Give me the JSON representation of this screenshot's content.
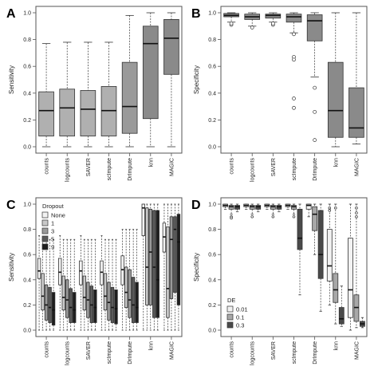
{
  "chart_data": [
    {
      "panel": "A",
      "type": "boxplot",
      "ylabel": "Sensitivity",
      "ylim": [
        0,
        1
      ],
      "yticks": [
        "0.0",
        "0.2",
        "0.4",
        "0.6",
        "0.8",
        "1.0"
      ],
      "categories": [
        "counts",
        "logcounts",
        "SAVER",
        "scImpute",
        "DrImpute",
        "knn",
        "MAGIC"
      ],
      "boxes": [
        {
          "category": "counts",
          "min": 0.0,
          "q1": 0.08,
          "median": 0.27,
          "q3": 0.41,
          "max": 0.77,
          "fill": "#b0b0b0"
        },
        {
          "category": "logcounts",
          "min": 0.0,
          "q1": 0.08,
          "median": 0.29,
          "q3": 0.43,
          "max": 0.78,
          "fill": "#b0b0b0"
        },
        {
          "category": "SAVER",
          "min": 0.0,
          "q1": 0.08,
          "median": 0.28,
          "q3": 0.42,
          "max": 0.78,
          "fill": "#b0b0b0"
        },
        {
          "category": "scImpute",
          "min": 0.0,
          "q1": 0.08,
          "median": 0.27,
          "q3": 0.45,
          "max": 0.78,
          "fill": "#b0b0b0"
        },
        {
          "category": "DrImpute",
          "min": 0.0,
          "q1": 0.1,
          "median": 0.3,
          "q3": 0.63,
          "max": 0.98,
          "fill": "#9a9a9a"
        },
        {
          "category": "knn",
          "min": 0.0,
          "q1": 0.21,
          "median": 0.77,
          "q3": 0.9,
          "max": 1.0,
          "fill": "#8a8a8a"
        },
        {
          "category": "MAGIC",
          "min": 0.0,
          "q1": 0.54,
          "median": 0.81,
          "q3": 0.95,
          "max": 1.0,
          "fill": "#8a8a8a"
        }
      ]
    },
    {
      "panel": "B",
      "type": "boxplot",
      "ylabel": "Specificity",
      "ylim": [
        0,
        1
      ],
      "yticks": [
        "0.0",
        "0.2",
        "0.4",
        "0.6",
        "0.8",
        "1.0"
      ],
      "categories": [
        "counts",
        "logcounts",
        "SAVER",
        "scImpute",
        "DrImpute",
        "knn",
        "MAGIC"
      ],
      "boxes": [
        {
          "category": "counts",
          "min": 0.93,
          "q1": 0.97,
          "median": 0.98,
          "q3": 0.995,
          "max": 1.0,
          "fill": "#8a8a8a",
          "outliers": [
            0.91,
            0.92
          ]
        },
        {
          "category": "logcounts",
          "min": 0.9,
          "q1": 0.95,
          "median": 0.97,
          "q3": 0.99,
          "max": 1.0,
          "fill": "#8a8a8a",
          "outliers": [
            0.89
          ]
        },
        {
          "category": "SAVER",
          "min": 0.93,
          "q1": 0.96,
          "median": 0.98,
          "q3": 0.99,
          "max": 1.0,
          "fill": "#8a8a8a",
          "outliers": [
            0.91,
            0.92
          ]
        },
        {
          "category": "scImpute",
          "min": 0.85,
          "q1": 0.93,
          "median": 0.97,
          "q3": 0.99,
          "max": 1.0,
          "fill": "#8a8a8a",
          "outliers": [
            0.84,
            0.67,
            0.65,
            0.36,
            0.29
          ]
        },
        {
          "category": "DrImpute",
          "min": 0.52,
          "q1": 0.79,
          "median": 0.94,
          "q3": 0.985,
          "max": 1.0,
          "fill": "#8a8a8a",
          "outliers": [
            0.44,
            0.26,
            0.05
          ]
        },
        {
          "category": "knn",
          "min": 0.0,
          "q1": 0.07,
          "median": 0.27,
          "q3": 0.63,
          "max": 1.0,
          "fill": "#8a8a8a"
        },
        {
          "category": "MAGIC",
          "min": 0.02,
          "q1": 0.07,
          "median": 0.14,
          "q3": 0.44,
          "max": 1.0,
          "fill": "#8a8a8a"
        }
      ]
    },
    {
      "panel": "C",
      "type": "boxplot",
      "ylabel": "Sensitivity",
      "ylim": [
        0,
        1
      ],
      "yticks": [
        "0.0",
        "0.2",
        "0.4",
        "0.6",
        "0.8",
        "1.0"
      ],
      "categories": [
        "counts",
        "logcounts",
        "SAVER",
        "scImpute",
        "DrImpute",
        "knn",
        "MAGIC"
      ],
      "legend": {
        "title": "Dropout",
        "entries": [
          {
            "label": "None",
            "color": "#f2f2f2"
          },
          {
            "label": "1",
            "color": "#c8c8c8"
          },
          {
            "label": "3",
            "color": "#9a9a9a"
          },
          {
            "label": "5",
            "color": "#5a5a5a"
          },
          {
            "label": "9",
            "color": "#1e1e1e"
          }
        ]
      },
      "series": [
        {
          "name": "None",
          "boxes": [
            {
              "category": "counts",
              "min": 0.0,
              "q1": 0.41,
              "median": 0.47,
              "q3": 0.57,
              "max": 0.75
            },
            {
              "category": "logcounts",
              "min": 0.0,
              "q1": 0.36,
              "median": 0.46,
              "q3": 0.57,
              "max": 0.75
            },
            {
              "category": "SAVER",
              "min": 0.0,
              "q1": 0.36,
              "median": 0.47,
              "q3": 0.55,
              "max": 0.75
            },
            {
              "category": "scImpute",
              "min": 0.0,
              "q1": 0.36,
              "median": 0.46,
              "q3": 0.55,
              "max": 0.75
            },
            {
              "category": "DrImpute",
              "min": 0.0,
              "q1": 0.36,
              "median": 0.48,
              "q3": 0.59,
              "max": 0.8
            },
            {
              "category": "knn",
              "min": 0.0,
              "q1": 0.75,
              "median": 0.97,
              "q3": 1.0,
              "max": 1.0
            },
            {
              "category": "MAGIC",
              "min": 0.0,
              "q1": 0.62,
              "median": 0.74,
              "q3": 0.85,
              "max": 1.0
            }
          ]
        },
        {
          "name": "1",
          "boxes": [
            {
              "category": "counts",
              "min": 0.0,
              "q1": 0.16,
              "median": 0.27,
              "q3": 0.45,
              "max": 0.72
            },
            {
              "category": "logcounts",
              "min": 0.0,
              "q1": 0.16,
              "median": 0.26,
              "q3": 0.43,
              "max": 0.72
            },
            {
              "category": "SAVER",
              "min": 0.0,
              "q1": 0.16,
              "median": 0.26,
              "q3": 0.43,
              "max": 0.72
            },
            {
              "category": "scImpute",
              "min": 0.0,
              "q1": 0.16,
              "median": 0.27,
              "q3": 0.45,
              "max": 0.72
            },
            {
              "category": "DrImpute",
              "min": 0.0,
              "q1": 0.18,
              "median": 0.3,
              "q3": 0.5,
              "max": 0.8
            },
            {
              "category": "knn",
              "min": 0.0,
              "q1": 0.2,
              "median": 0.5,
              "q3": 0.97,
              "max": 1.0
            },
            {
              "category": "MAGIC",
              "min": 0.0,
              "q1": 0.1,
              "median": 0.33,
              "q3": 0.82,
              "max": 1.0
            }
          ]
        },
        {
          "name": "3",
          "boxes": [
            {
              "category": "counts",
              "min": 0.0,
              "q1": 0.08,
              "median": 0.2,
              "q3": 0.36,
              "max": 0.72
            },
            {
              "category": "logcounts",
              "min": 0.0,
              "q1": 0.1,
              "median": 0.24,
              "q3": 0.4,
              "max": 0.72
            },
            {
              "category": "SAVER",
              "min": 0.0,
              "q1": 0.1,
              "median": 0.24,
              "q3": 0.38,
              "max": 0.72
            },
            {
              "category": "scImpute",
              "min": 0.0,
              "q1": 0.08,
              "median": 0.22,
              "q3": 0.38,
              "max": 0.72
            },
            {
              "category": "DrImpute",
              "min": 0.0,
              "q1": 0.1,
              "median": 0.24,
              "q3": 0.48,
              "max": 0.8
            },
            {
              "category": "knn",
              "min": 0.0,
              "q1": 0.2,
              "median": 0.62,
              "q3": 0.96,
              "max": 1.0
            },
            {
              "category": "MAGIC",
              "min": 0.0,
              "q1": 0.25,
              "median": 0.72,
              "q3": 0.9,
              "max": 1.0
            }
          ]
        },
        {
          "name": "5",
          "boxes": [
            {
              "category": "counts",
              "min": 0.0,
              "q1": 0.06,
              "median": 0.18,
              "q3": 0.34,
              "max": 0.72
            },
            {
              "category": "logcounts",
              "min": 0.0,
              "q1": 0.06,
              "median": 0.18,
              "q3": 0.33,
              "max": 0.72
            },
            {
              "category": "SAVER",
              "min": 0.0,
              "q1": 0.06,
              "median": 0.2,
              "q3": 0.35,
              "max": 0.72
            },
            {
              "category": "scImpute",
              "min": 0.0,
              "q1": 0.06,
              "median": 0.18,
              "q3": 0.34,
              "max": 0.72
            },
            {
              "category": "DrImpute",
              "min": 0.0,
              "q1": 0.06,
              "median": 0.2,
              "q3": 0.42,
              "max": 0.8
            },
            {
              "category": "knn",
              "min": 0.0,
              "q1": 0.1,
              "median": 0.5,
              "q3": 0.95,
              "max": 1.0
            },
            {
              "category": "MAGIC",
              "min": 0.0,
              "q1": 0.3,
              "median": 0.8,
              "q3": 0.9,
              "max": 1.0
            }
          ]
        },
        {
          "name": "9",
          "boxes": [
            {
              "category": "counts",
              "min": 0.0,
              "q1": 0.04,
              "median": 0.16,
              "q3": 0.3,
              "max": 0.72
            },
            {
              "category": "logcounts",
              "min": 0.0,
              "q1": 0.06,
              "median": 0.16,
              "q3": 0.3,
              "max": 0.72
            },
            {
              "category": "SAVER",
              "min": 0.0,
              "q1": 0.06,
              "median": 0.18,
              "q3": 0.32,
              "max": 0.72
            },
            {
              "category": "scImpute",
              "min": 0.0,
              "q1": 0.05,
              "median": 0.17,
              "q3": 0.32,
              "max": 0.72
            },
            {
              "category": "DrImpute",
              "min": 0.0,
              "q1": 0.06,
              "median": 0.18,
              "q3": 0.38,
              "max": 0.8
            },
            {
              "category": "knn",
              "min": 0.0,
              "q1": 0.1,
              "median": 0.4,
              "q3": 0.95,
              "max": 1.0
            },
            {
              "category": "MAGIC",
              "min": 0.0,
              "q1": 0.2,
              "median": 0.7,
              "q3": 0.92,
              "max": 1.0
            }
          ]
        }
      ]
    },
    {
      "panel": "D",
      "type": "boxplot",
      "ylabel": "Specificity",
      "ylim": [
        0,
        1
      ],
      "yticks": [
        "0.0",
        "0.2",
        "0.4",
        "0.6",
        "0.8",
        "1.0"
      ],
      "categories": [
        "counts",
        "logcounts",
        "SAVER",
        "scImpute",
        "DrImpute",
        "knn",
        "MAGIC"
      ],
      "legend": {
        "title": "DE",
        "entries": [
          {
            "label": "0.01",
            "color": "#f2f2f2"
          },
          {
            "label": "0.1",
            "color": "#a8a8a8"
          },
          {
            "label": "0.3",
            "color": "#4a4a4a"
          }
        ]
      },
      "series": [
        {
          "name": "0.01",
          "boxes": [
            {
              "category": "counts",
              "min": 0.96,
              "q1": 0.98,
              "median": 0.99,
              "q3": 1.0,
              "max": 1.0
            },
            {
              "category": "logcounts",
              "min": 0.96,
              "q1": 0.98,
              "median": 0.99,
              "q3": 1.0,
              "max": 1.0
            },
            {
              "category": "SAVER",
              "min": 0.96,
              "q1": 0.98,
              "median": 0.99,
              "q3": 1.0,
              "max": 1.0
            },
            {
              "category": "scImpute",
              "min": 0.96,
              "q1": 0.98,
              "median": 0.99,
              "q3": 1.0,
              "max": 1.0
            },
            {
              "category": "DrImpute",
              "min": 0.9,
              "q1": 0.96,
              "median": 0.99,
              "q3": 1.0,
              "max": 1.0
            },
            {
              "category": "knn",
              "min": 0.2,
              "q1": 0.39,
              "median": 0.51,
              "q3": 0.8,
              "max": 1.0,
              "outliers": [
                0.97,
                0.95
              ]
            },
            {
              "category": "MAGIC",
              "min": 0.0,
              "q1": 0.1,
              "median": 0.32,
              "q3": 0.73,
              "max": 1.0
            }
          ]
        },
        {
          "name": "0.1",
          "boxes": [
            {
              "category": "counts",
              "min": 0.92,
              "q1": 0.96,
              "median": 0.98,
              "q3": 0.99,
              "max": 1.0,
              "outliers": [
                0.9,
                0.89
              ]
            },
            {
              "category": "logcounts",
              "min": 0.92,
              "q1": 0.96,
              "median": 0.98,
              "q3": 0.99,
              "max": 1.0,
              "outliers": [
                0.9
              ]
            },
            {
              "category": "SAVER",
              "min": 0.92,
              "q1": 0.96,
              "median": 0.98,
              "q3": 0.99,
              "max": 1.0,
              "outliers": [
                0.9
              ]
            },
            {
              "category": "scImpute",
              "min": 0.92,
              "q1": 0.96,
              "median": 0.98,
              "q3": 0.99,
              "max": 1.0,
              "outliers": [
                0.9
              ]
            },
            {
              "category": "DrImpute",
              "min": 0.6,
              "q1": 0.79,
              "median": 0.92,
              "q3": 0.98,
              "max": 1.0
            },
            {
              "category": "knn",
              "min": 0.05,
              "q1": 0.22,
              "median": 0.32,
              "q3": 0.45,
              "max": 1.0,
              "outliers": [
                0.97
              ]
            },
            {
              "category": "MAGIC",
              "min": 0.02,
              "q1": 0.07,
              "median": 0.18,
              "q3": 0.28,
              "max": 1.0,
              "outliers": [
                0.97,
                0.93,
                0.9
              ]
            }
          ]
        },
        {
          "name": "0.3",
          "boxes": [
            {
              "category": "counts",
              "min": 0.94,
              "q1": 0.96,
              "median": 0.98,
              "q3": 0.99,
              "max": 1.0
            },
            {
              "category": "logcounts",
              "min": 0.94,
              "q1": 0.96,
              "median": 0.98,
              "q3": 0.99,
              "max": 1.0
            },
            {
              "category": "SAVER",
              "min": 0.94,
              "q1": 0.96,
              "median": 0.98,
              "q3": 0.99,
              "max": 1.0
            },
            {
              "category": "scImpute",
              "min": 0.28,
              "q1": 0.64,
              "median": 0.73,
              "q3": 0.96,
              "max": 1.0
            },
            {
              "category": "DrImpute",
              "min": 0.15,
              "q1": 0.41,
              "median": 0.6,
              "q3": 0.95,
              "max": 1.0
            },
            {
              "category": "knn",
              "min": 0.03,
              "q1": 0.05,
              "median": 0.09,
              "q3": 0.18,
              "max": 0.35
            },
            {
              "category": "MAGIC",
              "min": 0.02,
              "q1": 0.03,
              "median": 0.05,
              "q3": 0.07,
              "max": 0.1
            }
          ]
        }
      ]
    }
  ]
}
